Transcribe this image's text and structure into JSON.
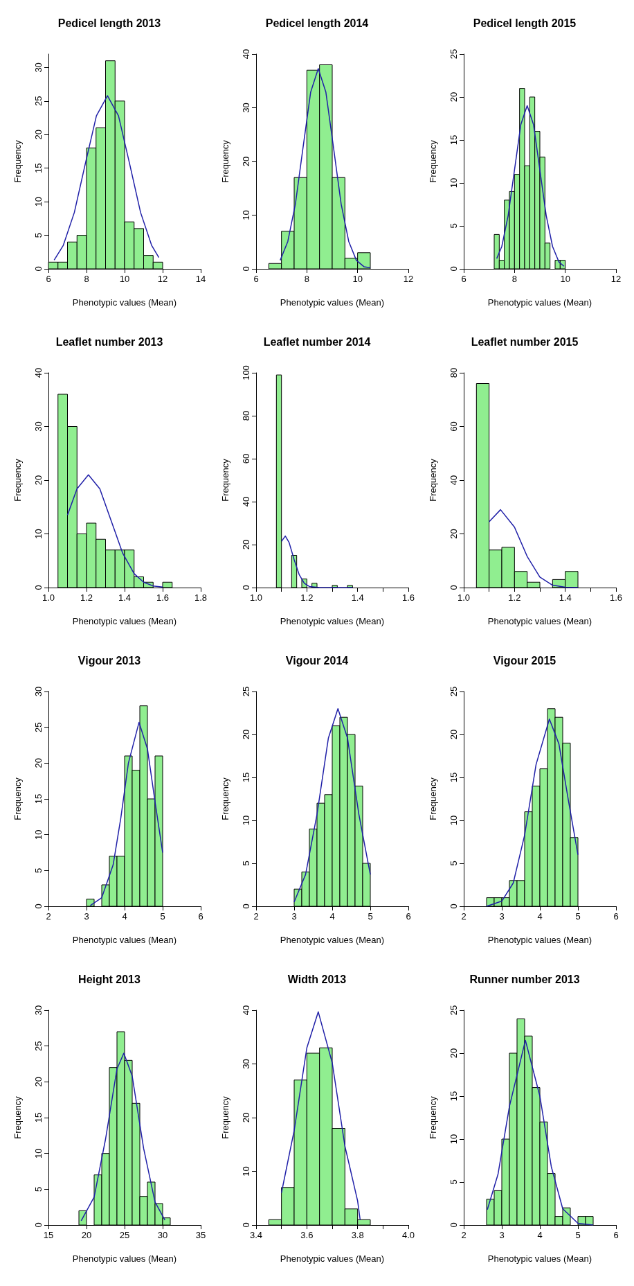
{
  "chart_data": [
    {
      "type": "histogram",
      "title": "Pedicel length 2013",
      "xlabel": "Phenotypic values (Mean)",
      "ylabel": "Frequency",
      "color": "#90ee90",
      "bins": [
        6,
        6.5,
        7,
        7.5,
        8,
        8.5,
        9,
        9.5,
        10,
        10.5,
        11,
        11.5,
        12
      ],
      "values": [
        1,
        1,
        4,
        5,
        18,
        21,
        31,
        25,
        7,
        6,
        2,
        1
      ],
      "xlim": [
        6,
        14
      ],
      "xticks": [
        6,
        8,
        10,
        12,
        14
      ],
      "ylim": [
        0,
        32
      ],
      "yticks": [
        0,
        5,
        10,
        15,
        20,
        25,
        30
      ],
      "grid": false,
      "series": [
        {
          "type": "line",
          "color": "#2020a8",
          "x": [
            6.3,
            6.78,
            7.36,
            7.94,
            8.52,
            9.1,
            9.68,
            10.26,
            10.84,
            11.42,
            11.8
          ],
          "values": [
            1.3,
            3.5,
            8.4,
            15.7,
            22.8,
            25.8,
            22.8,
            15.7,
            8.4,
            3.5,
            1.7
          ]
        }
      ]
    },
    {
      "type": "histogram",
      "title": "Pedicel length 2014",
      "xlabel": "Phenotypic values (Mean)",
      "ylabel": "Frequency",
      "color": "#90ee90",
      "bins": [
        6.5,
        7,
        7.5,
        8,
        8.5,
        9,
        9.5,
        10,
        10.5
      ],
      "values": [
        1,
        7,
        17,
        37,
        38,
        17,
        2,
        3
      ],
      "xlim": [
        6,
        12
      ],
      "xticks": [
        6,
        8,
        10,
        12
      ],
      "ylim": [
        0,
        40
      ],
      "yticks": [
        0,
        10,
        20,
        30,
        40
      ],
      "grid": false,
      "series": [
        {
          "type": "line",
          "color": "#2020a8",
          "x": [
            6.95,
            7.25,
            7.55,
            7.85,
            8.15,
            8.45,
            8.75,
            9.05,
            9.35,
            9.65,
            9.95,
            10.25,
            10.5
          ],
          "values": [
            1.6,
            5.1,
            12.1,
            22.6,
            32.9,
            37.3,
            32.9,
            22.6,
            12.1,
            5.1,
            1.6,
            0.4,
            0.2
          ]
        }
      ]
    },
    {
      "type": "histogram",
      "title": "Pedicel length 2015",
      "xlabel": "Phenotypic values (Mean)",
      "ylabel": "Frequency",
      "color": "#90ee90",
      "bins": [
        7.2,
        7.4,
        7.6,
        7.8,
        8,
        8.2,
        8.4,
        8.6,
        8.8,
        9,
        9.2,
        9.4,
        9.6,
        9.8,
        10
      ],
      "values": [
        4,
        1,
        8,
        9,
        11,
        21,
        12,
        20,
        16,
        13,
        3,
        0,
        1,
        1
      ],
      "xlim": [
        6,
        12
      ],
      "xticks": [
        6,
        8,
        10,
        12
      ],
      "ylim": [
        0,
        25
      ],
      "yticks": [
        0,
        5,
        10,
        15,
        20,
        25
      ],
      "grid": false,
      "series": [
        {
          "type": "line",
          "color": "#2020a8",
          "x": [
            7.3,
            7.5,
            7.75,
            8,
            8.25,
            8.5,
            8.75,
            9,
            9.25,
            9.5,
            9.75,
            9.95
          ],
          "values": [
            1.2,
            2.6,
            6.2,
            11.5,
            16.8,
            19,
            16.8,
            11.5,
            6.2,
            2.6,
            0.8,
            0.3
          ]
        }
      ]
    },
    {
      "type": "histogram",
      "title": "Leaflet number 2013",
      "xlabel": "Phenotypic values (Mean)",
      "ylabel": "Frequency",
      "color": "#90ee90",
      "bins": [
        1.05,
        1.1,
        1.15,
        1.2,
        1.25,
        1.3,
        1.35,
        1.4,
        1.45,
        1.5,
        1.55,
        1.6,
        1.65
      ],
      "values": [
        36,
        30,
        10,
        12,
        9,
        7,
        7,
        7,
        2,
        1,
        0,
        1
      ],
      "xlim": [
        1,
        1.8
      ],
      "xticks": [
        {
          "value": 1,
          "label": "1.0"
        },
        1.2,
        1.4,
        1.6,
        1.8
      ],
      "ylim": [
        0,
        40
      ],
      "yticks": [
        0,
        10,
        20,
        30,
        40
      ],
      "grid": false,
      "series": [
        {
          "type": "line",
          "color": "#2020a8",
          "x": [
            1.1,
            1.15,
            1.21,
            1.27,
            1.33,
            1.39,
            1.45,
            1.5,
            1.55,
            1.6
          ],
          "values": [
            13.5,
            18.4,
            21,
            18.4,
            12.4,
            6.4,
            2.6,
            1,
            0.3,
            0.1
          ]
        }
      ]
    },
    {
      "type": "histogram",
      "title": "Leaflet number 2014",
      "xlabel": "Phenotypic values (Mean)",
      "ylabel": "Frequency",
      "color": "#90ee90",
      "bins": [
        1.08,
        1.1,
        1.12,
        1.14,
        1.16,
        1.18,
        1.2,
        1.22,
        1.24,
        1.26,
        1.28,
        1.3,
        1.32,
        1.34,
        1.36,
        1.38
      ],
      "values": [
        99,
        0,
        0,
        15,
        0,
        4,
        0,
        2,
        0,
        0,
        0,
        1,
        0,
        0,
        1
      ],
      "xlim": [
        1,
        1.6
      ],
      "xticks": [
        {
          "value": 1,
          "label": "1.0"
        },
        {
          "value": 1.1,
          "label": null
        },
        1.2,
        {
          "value": 1.3,
          "label": null
        },
        1.4,
        {
          "value": 1.5,
          "label": null
        },
        1.6
      ],
      "ylim": [
        0,
        100
      ],
      "yticks": [
        0,
        20,
        40,
        60,
        80,
        100
      ],
      "grid": false,
      "series": [
        {
          "type": "line",
          "color": "#2020a8",
          "x": [
            1.1,
            1.115,
            1.13,
            1.15,
            1.17,
            1.19,
            1.21,
            1.25,
            1.38
          ],
          "values": [
            21.5,
            24,
            21,
            13,
            6,
            2,
            0.5,
            0,
            0
          ]
        }
      ]
    },
    {
      "type": "histogram",
      "title": "Leaflet number 2015",
      "xlabel": "Phenotypic values (Mean)",
      "ylabel": "Frequency",
      "color": "#90ee90",
      "bins": [
        1.05,
        1.1,
        1.15,
        1.2,
        1.25,
        1.3,
        1.35,
        1.4,
        1.45
      ],
      "values": [
        76,
        14,
        15,
        6,
        2,
        0,
        3,
        6
      ],
      "xlim": [
        1,
        1.6
      ],
      "xticks": [
        {
          "value": 1,
          "label": "1.0"
        },
        {
          "value": 1.1,
          "label": null
        },
        1.2,
        {
          "value": 1.3,
          "label": null
        },
        1.4,
        {
          "value": 1.5,
          "label": null
        },
        1.6
      ],
      "ylim": [
        0,
        80
      ],
      "yticks": [
        0,
        20,
        40,
        60,
        80
      ],
      "grid": false,
      "series": [
        {
          "type": "line",
          "color": "#2020a8",
          "x": [
            1.1,
            1.145,
            1.2,
            1.25,
            1.3,
            1.35,
            1.4,
            1.45
          ],
          "values": [
            24.5,
            29,
            22.5,
            11.6,
            3.9,
            0.9,
            0.1,
            0
          ]
        }
      ]
    },
    {
      "type": "histogram",
      "title": "Vigour 2013",
      "xlabel": "Phenotypic values (Mean)",
      "ylabel": "Frequency",
      "color": "#90ee90",
      "bins": [
        3,
        3.2,
        3.4,
        3.6,
        3.8,
        4,
        4.2,
        4.4,
        4.6,
        4.8,
        5
      ],
      "values": [
        1,
        0,
        3,
        7,
        7,
        21,
        19,
        28,
        15,
        21
      ],
      "xlim": [
        2,
        6
      ],
      "xticks": [
        2,
        3,
        4,
        5,
        6
      ],
      "ylim": [
        0,
        30
      ],
      "yticks": [
        0,
        5,
        10,
        15,
        20,
        25,
        30
      ],
      "grid": false,
      "series": [
        {
          "type": "line",
          "color": "#2020a8",
          "x": [
            3.1,
            3.4,
            3.7,
            3.9,
            4.1,
            4.38,
            4.6,
            4.8,
            5
          ],
          "values": [
            0.1,
            1.2,
            5.8,
            12.3,
            20,
            25.7,
            22,
            14.6,
            7.5
          ]
        }
      ]
    },
    {
      "type": "histogram",
      "title": "Vigour 2014",
      "xlabel": "Phenotypic values (Mean)",
      "ylabel": "Frequency",
      "color": "#90ee90",
      "bins": [
        3,
        3.2,
        3.4,
        3.6,
        3.8,
        4,
        4.2,
        4.4,
        4.6,
        4.8,
        5
      ],
      "values": [
        2,
        4,
        9,
        12,
        13,
        21,
        22,
        20,
        14,
        5
      ],
      "xlim": [
        2,
        6
      ],
      "xticks": [
        2,
        3,
        4,
        5,
        6
      ],
      "ylim": [
        0,
        25
      ],
      "yticks": [
        0,
        5,
        10,
        15,
        20,
        25
      ],
      "grid": false,
      "series": [
        {
          "type": "line",
          "color": "#2020a8",
          "x": [
            3,
            3.3,
            3.6,
            3.9,
            4.15,
            4.4,
            4.7,
            5
          ],
          "values": [
            0.5,
            3.7,
            10.7,
            19.6,
            23,
            19.6,
            10.7,
            3.7
          ]
        }
      ]
    },
    {
      "type": "histogram",
      "title": "Vigour 2015",
      "xlabel": "Phenotypic values (Mean)",
      "ylabel": "Frequency",
      "color": "#90ee90",
      "bins": [
        2.6,
        2.8,
        3,
        3.2,
        3.4,
        3.6,
        3.8,
        4,
        4.2,
        4.4,
        4.6,
        4.8,
        5
      ],
      "values": [
        1,
        1,
        1,
        3,
        3,
        11,
        14,
        16,
        23,
        22,
        19,
        8
      ],
      "xlim": [
        2,
        6
      ],
      "xticks": [
        2,
        3,
        4,
        5,
        6
      ],
      "ylim": [
        0,
        25
      ],
      "yticks": [
        0,
        5,
        10,
        15,
        20,
        25
      ],
      "grid": false,
      "series": [
        {
          "type": "line",
          "color": "#2020a8",
          "x": [
            2.6,
            3,
            3.3,
            3.6,
            3.9,
            4.25,
            4.5,
            4.75,
            5
          ],
          "values": [
            0,
            0.6,
            2.7,
            8.3,
            16.5,
            21.8,
            18.9,
            12.3,
            6
          ]
        }
      ]
    },
    {
      "type": "histogram",
      "title": "Height 2013",
      "xlabel": "Phenotypic values (Mean)",
      "ylabel": "Frequency",
      "color": "#90ee90",
      "bins": [
        19,
        20,
        21,
        22,
        23,
        24,
        25,
        26,
        27,
        28,
        29,
        30,
        31
      ],
      "values": [
        2,
        0,
        7,
        10,
        22,
        27,
        23,
        17,
        4,
        6,
        3,
        1
      ],
      "xlim": [
        15,
        35
      ],
      "xticks": [
        15,
        20,
        25,
        30,
        35
      ],
      "ylim": [
        0,
        30
      ],
      "yticks": [
        0,
        5,
        10,
        15,
        20,
        25,
        30
      ],
      "grid": false,
      "series": [
        {
          "type": "line",
          "color": "#2020a8",
          "x": [
            19.3,
            21,
            22.5,
            24,
            24.9,
            26,
            27.5,
            29,
            30.3
          ],
          "values": [
            0.6,
            3.9,
            12,
            21.8,
            24,
            20.8,
            10.7,
            3.2,
            0.7
          ]
        }
      ]
    },
    {
      "type": "histogram",
      "title": "Width 2013",
      "xlabel": "Phenotypic values (Mean)",
      "ylabel": "Frequency",
      "color": "#90ee90",
      "bins": [
        3.45,
        3.5,
        3.55,
        3.6,
        3.65,
        3.7,
        3.75,
        3.8,
        3.85
      ],
      "values": [
        1,
        7,
        27,
        32,
        33,
        18,
        3,
        1
      ],
      "xlim": [
        3.4,
        4
      ],
      "xticks": [
        3.4,
        {
          "value": 3.5,
          "label": null
        },
        3.6,
        {
          "value": 3.7,
          "label": null
        },
        3.8,
        {
          "value": 3.9,
          "label": null
        },
        {
          "value": 4,
          "label": "4.0"
        }
      ],
      "ylim": [
        0,
        40
      ],
      "yticks": [
        0,
        10,
        20,
        30,
        40
      ],
      "grid": false,
      "series": [
        {
          "type": "line",
          "color": "#2020a8",
          "x": [
            3.5,
            3.55,
            3.6,
            3.645,
            3.7,
            3.75,
            3.8,
            3.81
          ],
          "values": [
            6,
            17.6,
            33,
            39.7,
            30.2,
            14.7,
            4.5,
            1
          ]
        }
      ]
    },
    {
      "type": "histogram",
      "title": "Runner number 2013",
      "xlabel": "Phenotypic values (Mean)",
      "ylabel": "Frequency",
      "color": "#90ee90",
      "bins": [
        2.6,
        2.8,
        3,
        3.2,
        3.4,
        3.6,
        3.8,
        4,
        4.2,
        4.4,
        4.6,
        4.8,
        5,
        5.2,
        5.4
      ],
      "values": [
        3,
        4,
        10,
        20,
        24,
        22,
        16,
        12,
        6,
        1,
        2,
        0,
        1,
        1
      ],
      "xlim": [
        2,
        6
      ],
      "xticks": [
        2,
        3,
        4,
        5,
        6
      ],
      "ylim": [
        0,
        25
      ],
      "yticks": [
        0,
        5,
        10,
        15,
        20,
        25
      ],
      "grid": false,
      "series": [
        {
          "type": "line",
          "color": "#2020a8",
          "x": [
            2.62,
            2.9,
            3.2,
            3.62,
            4,
            4.3,
            4.6,
            5,
            5.4
          ],
          "values": [
            1.8,
            5.9,
            13.8,
            21.5,
            15,
            6.8,
            1.9,
            0.2,
            0
          ]
        }
      ]
    }
  ]
}
